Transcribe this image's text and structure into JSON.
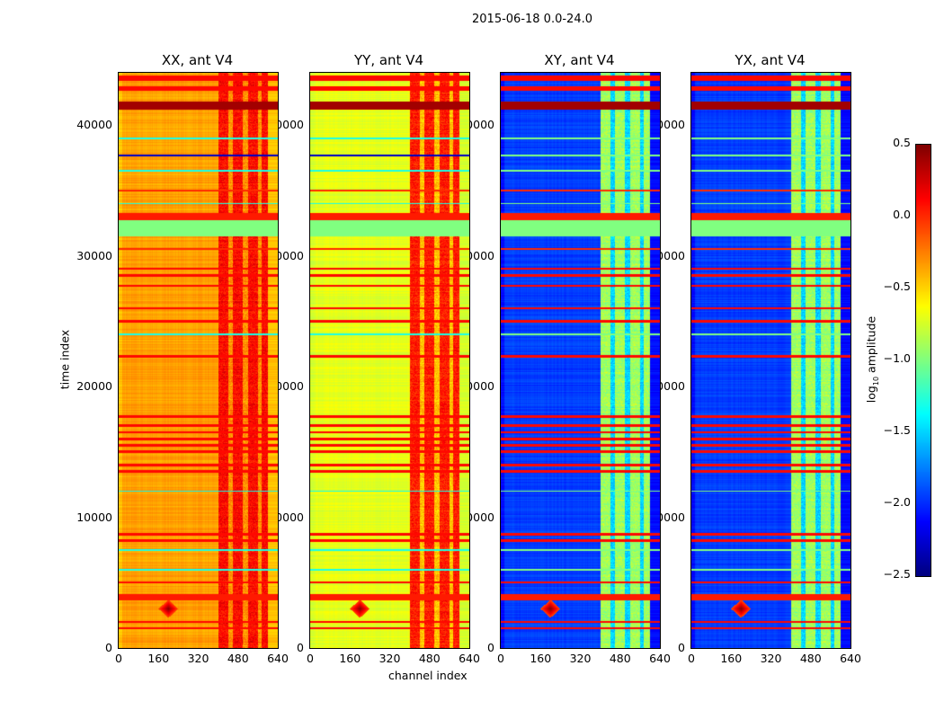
{
  "chart_data": {
    "type": "heatmap",
    "title": "2015-06-18 0.0-24.0",
    "xlabel": "channel index",
    "ylabel": "time index",
    "xlim": [
      0,
      640
    ],
    "ylim": [
      0,
      44000
    ],
    "xticks": [
      "0",
      "160",
      "320",
      "480",
      "640"
    ],
    "yticks": [
      "0",
      "10000",
      "20000",
      "30000",
      "40000"
    ],
    "colorbar": {
      "label_main": "log",
      "label_sub": "10",
      "label_rest": " amplitude",
      "range": [
        -2.5,
        0.5
      ],
      "ticks": [
        "0.5",
        "0.0",
        "−0.5",
        "−1.0",
        "−1.5",
        "−2.0",
        "−2.5"
      ],
      "tick_values": [
        0.5,
        0.0,
        -0.5,
        -1.0,
        -1.5,
        -2.0,
        -2.5
      ],
      "colormap": "jet"
    },
    "stripe_columns": [
      [
        400,
        440,
        1
      ],
      [
        440,
        460,
        0
      ],
      [
        460,
        500,
        1
      ],
      [
        500,
        520,
        0
      ],
      [
        520,
        560,
        1
      ],
      [
        560,
        575,
        0
      ],
      [
        575,
        600,
        1
      ]
    ],
    "flag_band": {
      "time": [
        31500,
        33000
      ],
      "value": -1.0
    },
    "hot_rows": [
      [
        33000,
        250,
        0.05
      ],
      [
        3900,
        250,
        0.05
      ],
      [
        41500,
        300,
        0.4
      ],
      [
        42800,
        200,
        0.1
      ],
      [
        43600,
        200,
        0.1
      ],
      [
        29000,
        80,
        0.1
      ],
      [
        28500,
        80,
        0.1
      ],
      [
        27700,
        80,
        0.1
      ],
      [
        26000,
        80,
        0.1
      ],
      [
        25000,
        80,
        0.1
      ],
      [
        22300,
        80,
        0.1
      ],
      [
        17700,
        120,
        0.1
      ],
      [
        17000,
        100,
        0.1
      ],
      [
        16500,
        100,
        0.1
      ],
      [
        16000,
        100,
        0.1
      ],
      [
        15500,
        100,
        0.1
      ],
      [
        15000,
        100,
        0.1
      ],
      [
        14000,
        100,
        0.1
      ],
      [
        13500,
        100,
        0.1
      ],
      [
        8700,
        100,
        0.1
      ],
      [
        8200,
        100,
        0.1
      ],
      [
        5000,
        80,
        0.1
      ],
      [
        2000,
        80,
        0.1
      ],
      [
        1500,
        80,
        0.1
      ],
      [
        35000,
        60,
        0.0
      ],
      [
        30500,
        60,
        0.0
      ]
    ],
    "cool_rows": [
      [
        37700,
        60,
        -2.3
      ],
      [
        39000,
        60,
        -1.3
      ],
      [
        36500,
        60,
        -1.3
      ],
      [
        34000,
        60,
        -1.3
      ],
      [
        24000,
        60,
        -1.3
      ],
      [
        12000,
        60,
        -1.3
      ],
      [
        6000,
        60,
        -1.3
      ],
      [
        7500,
        60,
        -1.3
      ]
    ],
    "hot_spot": {
      "channel": 200,
      "time": 3000,
      "value": 0.5
    },
    "panels": [
      {
        "title": "XX, ant V4",
        "base": -0.35,
        "stripe_hi": 0.1,
        "stripe_lo": -0.3,
        "edge": -0.45
      },
      {
        "title": "YY, ant V4",
        "base": -0.7,
        "stripe_hi": 0.05,
        "stripe_lo": -0.45,
        "edge": -0.75
      },
      {
        "title": "XY, ant V4",
        "base": -1.95,
        "stripe_hi": -0.9,
        "stripe_lo": -1.5,
        "edge": -2.1
      },
      {
        "title": "YX, ant V4",
        "base": -1.95,
        "stripe_hi": -0.9,
        "stripe_lo": -1.5,
        "edge": -2.1
      }
    ]
  }
}
